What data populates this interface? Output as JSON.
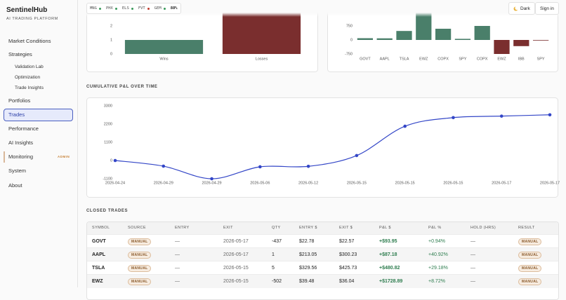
{
  "sidebar": {
    "brand": "SentinelHub",
    "tagline": "AI TRADING PLATFORM",
    "nav": [
      {
        "label": "Market Conditions",
        "level": 1
      },
      {
        "label": "Strategies",
        "level": 1
      },
      {
        "label": "Validation Lab",
        "level": 2
      },
      {
        "label": "Optimization",
        "level": 2
      },
      {
        "label": "Trade Insights",
        "level": 2
      },
      {
        "label": "Portfolios",
        "level": 1
      },
      {
        "label": "Trades",
        "level": 1,
        "active": true
      },
      {
        "label": "Performance",
        "level": 1
      },
      {
        "label": "AI Insights",
        "level": 1
      },
      {
        "label": "Monitoring",
        "level": 1,
        "badge": "ADMIN"
      },
      {
        "label": "System",
        "level": 1
      },
      {
        "label": "About",
        "level": 1
      }
    ]
  },
  "header": {
    "tickers": [
      {
        "symbol": "MNG",
        "status_color": "#3a9a5b"
      },
      {
        "symbol": "PHX",
        "status_color": "#3a9a5b"
      },
      {
        "symbol": "ELS",
        "status_color": "#3a9a5b"
      },
      {
        "symbol": "FVT",
        "status_color": "#c0392b"
      },
      {
        "symbol": "GEM",
        "status_color": "#3a9a5b"
      }
    ],
    "score": "88%",
    "theme_button": "Dark",
    "sign_in": "Sign in"
  },
  "sections": {
    "cumulative": "CUMULATIVE P&L OVER TIME",
    "closed": "CLOSED TRADES"
  },
  "chart_data": [
    {
      "type": "bar",
      "categories": [
        "Wins",
        "Losses"
      ],
      "values": [
        1,
        3
      ],
      "colors": [
        "#4a7f6a",
        "#7a2e2e"
      ],
      "ylim": [
        0,
        3.5
      ],
      "yticks": [
        0,
        1,
        2
      ]
    },
    {
      "type": "bar",
      "categories": [
        "GOVT",
        "AAPL",
        "TSLA",
        "EWZ",
        "COPX",
        "SPY",
        "COPX",
        "EWZ",
        "IBB",
        "SPY"
      ],
      "values": [
        93.95,
        87.18,
        480.82,
        1728.89,
        600,
        60,
        750,
        -750,
        -330,
        -30
      ],
      "color": "#4a7f6a",
      "negative_color": "#7a2e2e",
      "ylim": [
        -750,
        2250
      ],
      "yticks": [
        -750,
        0,
        750
      ]
    },
    {
      "type": "line",
      "categories": [
        "2026-04-24",
        "2026-04-29",
        "2026-04-29",
        "2026-05-06",
        "2026-05-12",
        "2026-05-15",
        "2026-05-15",
        "2026-05-15",
        "2026-05-17",
        "2026-05-17"
      ],
      "values": [
        0,
        -340,
        -1100,
        -380,
        -350,
        300,
        2070,
        2590,
        2680,
        2760
      ],
      "color": "#3346c7",
      "ylim": [
        -1100,
        3300
      ],
      "yticks": [
        -1100,
        0,
        1100,
        2200,
        3300
      ],
      "grid": false
    }
  ],
  "table": {
    "columns": [
      "SYMBOL",
      "SOURCE",
      "ENTRY",
      "EXIT",
      "QTY",
      "ENTRY $",
      "EXIT $",
      "P&L $",
      "P&L %",
      "HOLD (HRS)",
      "RESULT"
    ],
    "rows": [
      [
        "GOVT",
        "MANUAL",
        "—",
        "2026-05-17",
        "-437",
        "$22.78",
        "$22.57",
        "+$93.95",
        "+0.94%",
        "—",
        "MANUAL"
      ],
      [
        "AAPL",
        "MANUAL",
        "—",
        "2026-05-17",
        "1",
        "$213.05",
        "$300.23",
        "+$87.18",
        "+40.92%",
        "—",
        "MANUAL"
      ],
      [
        "TSLA",
        "MANUAL",
        "—",
        "2026-05-15",
        "5",
        "$329.56",
        "$425.73",
        "+$480.82",
        "+29.18%",
        "—",
        "MANUAL"
      ],
      [
        "EWZ",
        "MANUAL",
        "—",
        "2026-05-15",
        "-502",
        "$39.48",
        "$36.04",
        "+$1728.89",
        "+8.72%",
        "—",
        "MANUAL"
      ]
    ]
  }
}
